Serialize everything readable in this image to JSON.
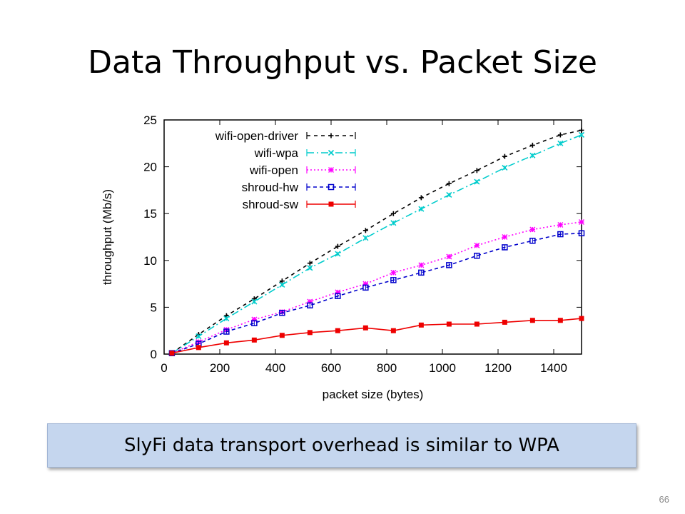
{
  "slide": {
    "title": "Data Throughput vs. Packet Size",
    "callout": "SlyFi data transport overhead is similar to WPA",
    "page_number": "66"
  },
  "chart_data": {
    "type": "line",
    "title": "",
    "xlabel": "packet size (bytes)",
    "ylabel": "throughput (Mb/s)",
    "xlim": [
      0,
      1500
    ],
    "ylim": [
      0,
      25
    ],
    "xticks": [
      0,
      200,
      400,
      600,
      800,
      1000,
      1200,
      1400
    ],
    "yticks": [
      0,
      5,
      10,
      15,
      20,
      25
    ],
    "grid": false,
    "legend_position": "top-left",
    "x": [
      28,
      124,
      224,
      324,
      424,
      524,
      624,
      724,
      824,
      924,
      1024,
      1124,
      1224,
      1324,
      1424,
      1500
    ],
    "series": [
      {
        "name": "wifi-open-driver",
        "color": "#000000",
        "dash": "5,5",
        "marker": "plus",
        "values": [
          0.1,
          2.1,
          4.1,
          5.9,
          7.8,
          9.7,
          11.5,
          13.2,
          15.0,
          16.7,
          18.2,
          19.6,
          21.1,
          22.3,
          23.4,
          23.9
        ]
      },
      {
        "name": "wifi-wpa",
        "color": "#00cccc",
        "dash": "10,4,2,4",
        "marker": "cross",
        "values": [
          0.1,
          1.9,
          3.8,
          5.6,
          7.4,
          9.2,
          10.7,
          12.4,
          14.0,
          15.5,
          17.0,
          18.4,
          19.9,
          21.2,
          22.5,
          23.4
        ]
      },
      {
        "name": "wifi-open",
        "color": "#ff00ff",
        "dash": "2,3",
        "marker": "star",
        "values": [
          0.1,
          1.3,
          2.6,
          3.7,
          4.5,
          5.6,
          6.6,
          7.5,
          8.7,
          9.5,
          10.4,
          11.6,
          12.5,
          13.3,
          13.8,
          14.1
        ]
      },
      {
        "name": "shroud-hw",
        "color": "#0000cc",
        "dash": "5,4",
        "marker": "square",
        "values": [
          0.1,
          1.1,
          2.4,
          3.3,
          4.4,
          5.2,
          6.2,
          7.1,
          7.9,
          8.7,
          9.5,
          10.5,
          11.4,
          12.1,
          12.8,
          12.9
        ]
      },
      {
        "name": "shroud-sw",
        "color": "#ee0000",
        "dash": "",
        "marker": "filled-square",
        "values": [
          0.1,
          0.7,
          1.2,
          1.5,
          2.0,
          2.3,
          2.5,
          2.8,
          2.5,
          3.1,
          3.2,
          3.2,
          3.4,
          3.6,
          3.6,
          3.8
        ]
      }
    ]
  }
}
